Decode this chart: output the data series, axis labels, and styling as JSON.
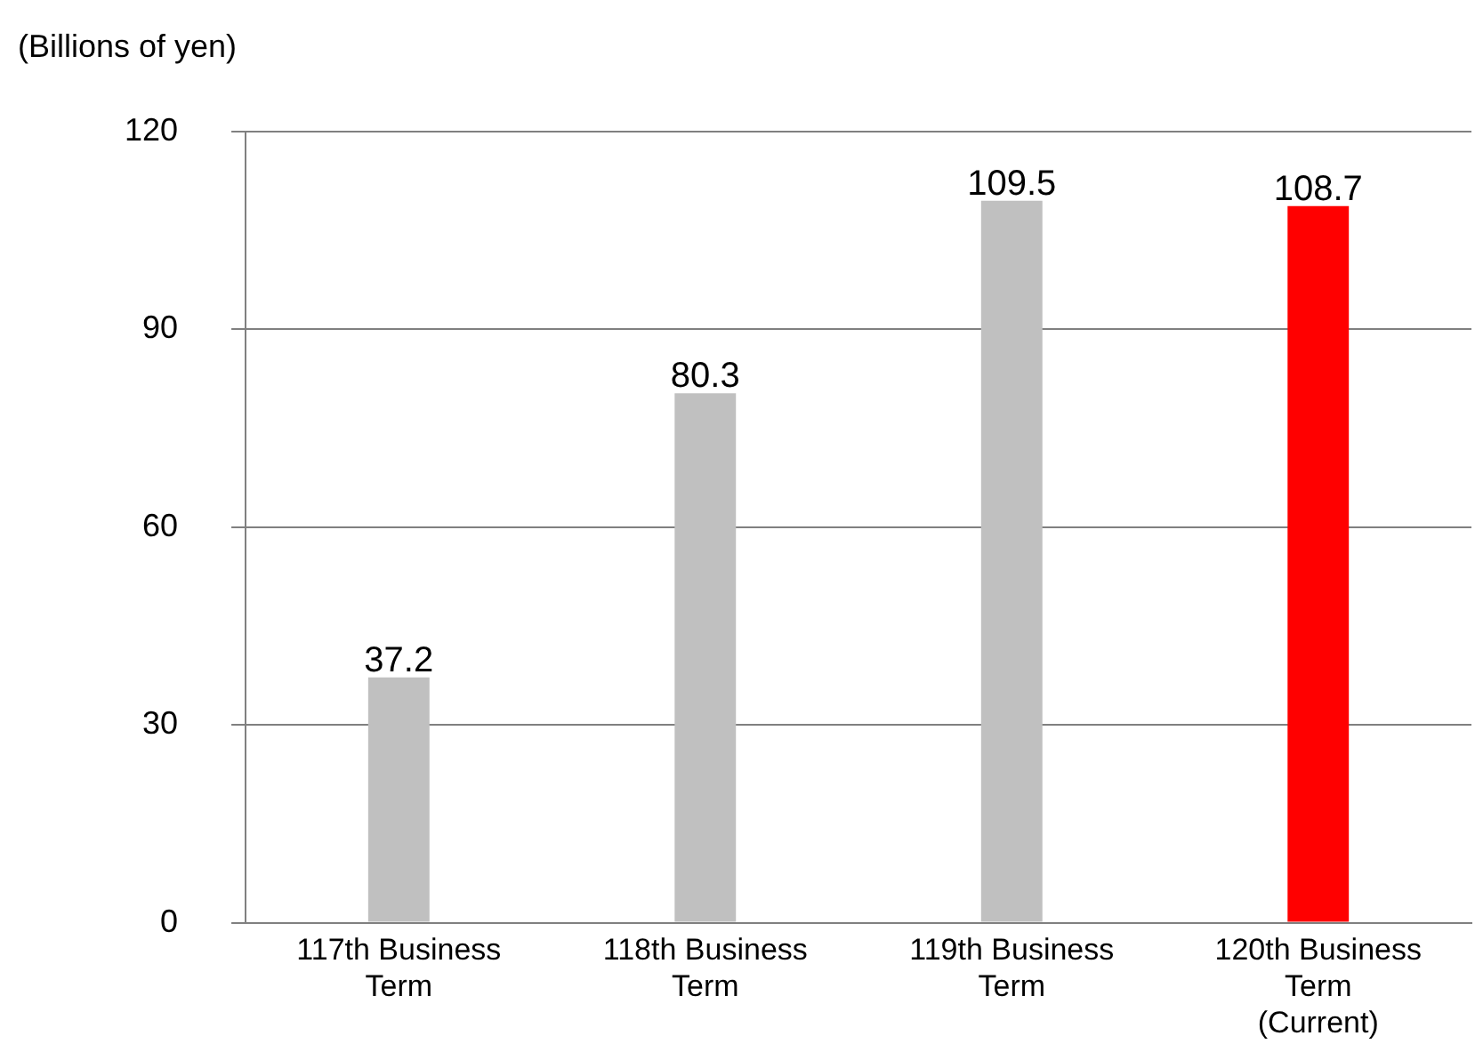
{
  "chart_data": {
    "type": "bar",
    "ylabel": "(Billions of yen)",
    "categories": [
      "117th Business Term",
      "118th Business Term",
      "119th Business Term",
      "120th Business Term (Current)"
    ],
    "values": [
      37.2,
      80.3,
      109.5,
      108.7
    ],
    "colors": [
      "#c0c0c0",
      "#c0c0c0",
      "#c0c0c0",
      "#ff0000"
    ],
    "ylim": [
      0,
      120
    ],
    "yticks": [
      0,
      30,
      60,
      90,
      120
    ],
    "grid": "y",
    "data_labels": true
  }
}
